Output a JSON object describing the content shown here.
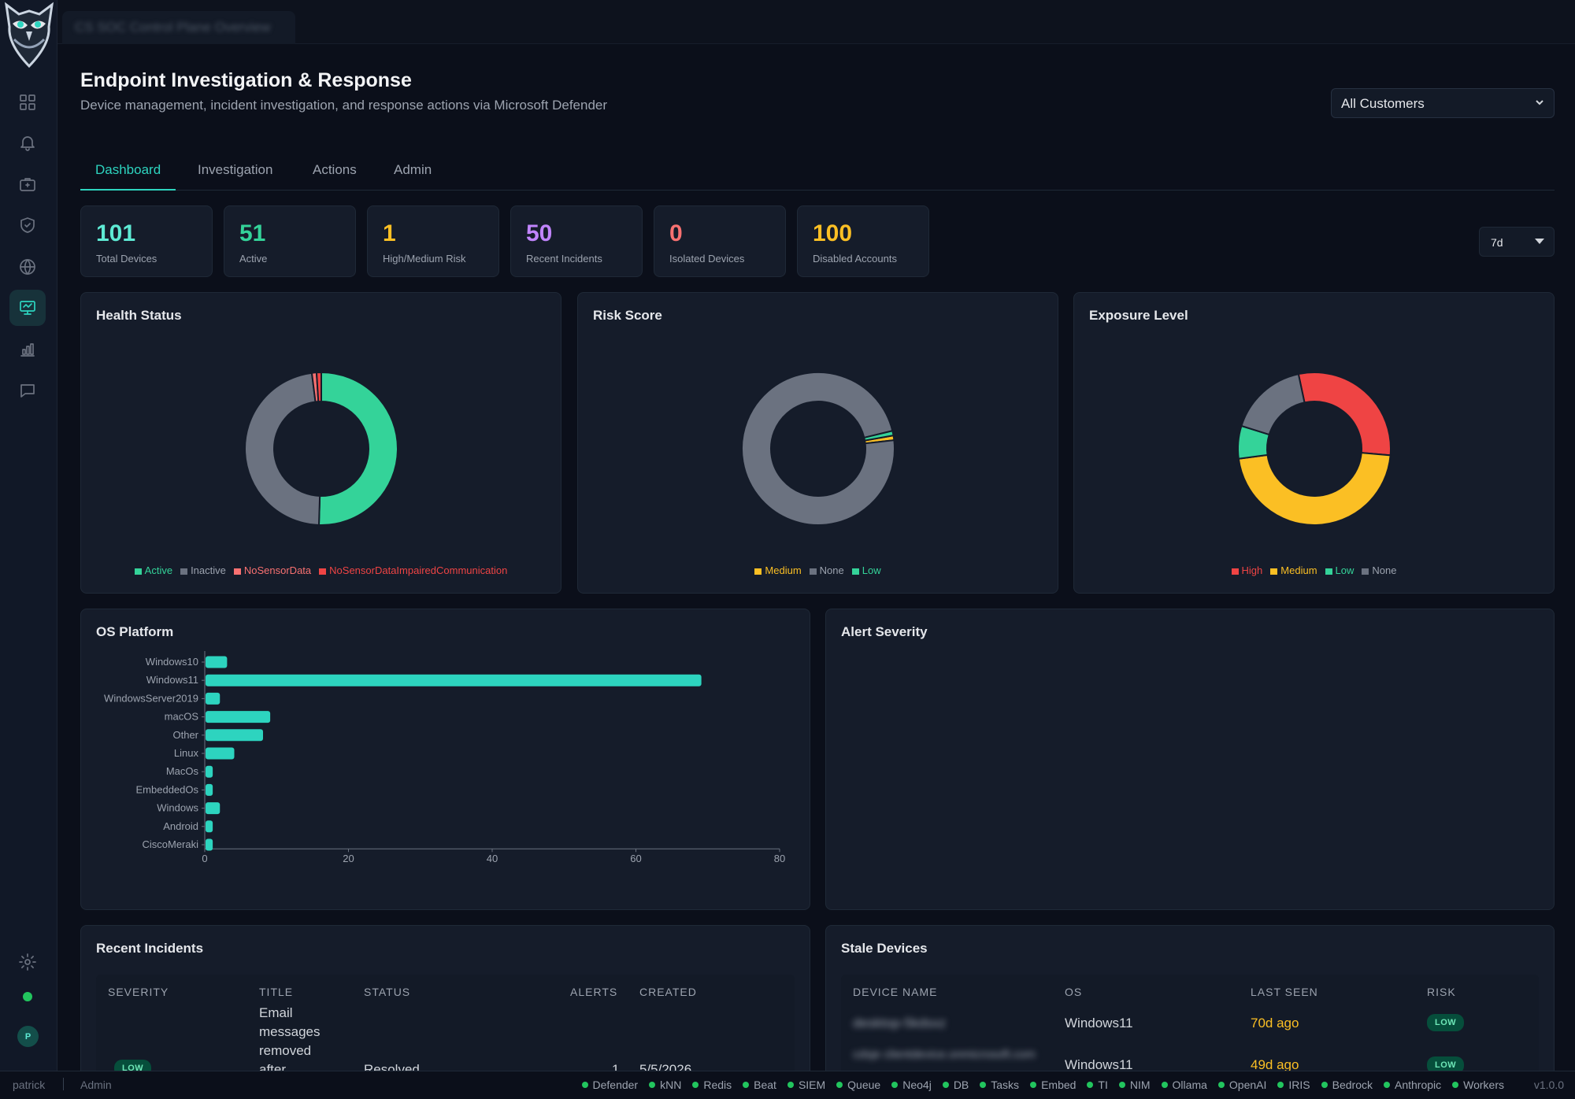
{
  "app": {
    "window_tab_title": "CS SOC Control Plane Overview"
  },
  "sidebar": {
    "items": [
      {
        "name": "dashboard-grid"
      },
      {
        "name": "alerts-bell"
      },
      {
        "name": "cases-briefcase"
      },
      {
        "name": "shield"
      },
      {
        "name": "globe"
      },
      {
        "name": "endpoint-monitor",
        "active": true
      },
      {
        "name": "reports-chart"
      },
      {
        "name": "chat"
      }
    ],
    "avatar_initial": "P"
  },
  "header": {
    "title": "Endpoint Investigation & Response",
    "subtitle": "Device management, incident investigation, and response actions via Microsoft Defender",
    "customer_select": "All Customers"
  },
  "tabs": [
    "Dashboard",
    "Investigation",
    "Actions",
    "Admin"
  ],
  "active_tab": "Dashboard",
  "kpis": [
    {
      "value": "101",
      "label": "Total Devices",
      "color": "#5eead4"
    },
    {
      "value": "51",
      "label": "Active",
      "color": "#34d399"
    },
    {
      "value": "1",
      "label": "High/Medium Risk",
      "color": "#fbbf24"
    },
    {
      "value": "50",
      "label": "Recent Incidents",
      "color": "#c084fc"
    },
    {
      "value": "0",
      "label": "Isolated Devices",
      "color": "#f87171"
    },
    {
      "value": "100",
      "label": "Disabled Accounts",
      "color": "#fbbf24"
    }
  ],
  "time_range": "7d",
  "panels": {
    "health": {
      "title": "Health Status"
    },
    "risk": {
      "title": "Risk Score"
    },
    "exposure": {
      "title": "Exposure Level"
    },
    "os": {
      "title": "OS Platform"
    },
    "alert_severity": {
      "title": "Alert Severity"
    },
    "incidents": {
      "title": "Recent Incidents"
    },
    "stale": {
      "title": "Stale Devices"
    }
  },
  "chart_data": [
    {
      "type": "pie",
      "title": "Health Status",
      "series": [
        {
          "name": "Active",
          "value": 51,
          "color": "#34d399"
        },
        {
          "name": "Inactive",
          "value": 48,
          "color": "#6b7280"
        },
        {
          "name": "NoSensorData",
          "value": 1,
          "color": "#f87171"
        },
        {
          "name": "NoSensorDataImpairedCommunication",
          "value": 1,
          "color": "#ef4444"
        }
      ]
    },
    {
      "type": "pie",
      "title": "Risk Score",
      "series": [
        {
          "name": "Medium",
          "value": 1,
          "color": "#fbbf24"
        },
        {
          "name": "None",
          "value": 99,
          "color": "#6b7280"
        },
        {
          "name": "Low",
          "value": 1,
          "color": "#34d399"
        }
      ]
    },
    {
      "type": "pie",
      "title": "Exposure Level",
      "series": [
        {
          "name": "High",
          "value": 30,
          "color": "#ef4444"
        },
        {
          "name": "Medium",
          "value": 47,
          "color": "#fbbf24"
        },
        {
          "name": "Low",
          "value": 7,
          "color": "#34d399"
        },
        {
          "name": "None",
          "value": 17,
          "color": "#6b7280"
        }
      ]
    },
    {
      "type": "bar",
      "orientation": "horizontal",
      "title": "OS Platform",
      "categories": [
        "Windows10",
        "Windows11",
        "WindowsServer2019",
        "macOS",
        "Other",
        "Linux",
        "MacOs",
        "EmbeddedOs",
        "Windows",
        "Android",
        "CiscoMeraki"
      ],
      "values": [
        3,
        69,
        2,
        9,
        8,
        4,
        1,
        1,
        2,
        1,
        1
      ],
      "xlim": [
        0,
        80
      ],
      "xticks": [
        0,
        20,
        40,
        60,
        80
      ],
      "color": "#2dd4bf",
      "grid": false
    }
  ],
  "incidents": {
    "columns": [
      "SEVERITY",
      "TITLE",
      "STATUS",
      "ALERTS",
      "CREATED"
    ],
    "rows": [
      {
        "severity": "LOW",
        "title_lines": [
          "Email",
          "messages",
          "removed",
          "after"
        ],
        "status": "Resolved",
        "alerts": "1",
        "created": "5/5/2026"
      }
    ]
  },
  "stale": {
    "columns": [
      "DEVICE NAME",
      "OS",
      "LAST SEEN",
      "RISK"
    ],
    "rows": [
      {
        "device": "desktop-5kdsxz",
        "os": "Windows11",
        "last_seen": "70d ago",
        "risk": "LOW"
      },
      {
        "device": "cdsje clientdevice.onmicrosoft.com",
        "os": "Windows11",
        "last_seen": "49d ago",
        "risk": "LOW"
      }
    ]
  },
  "footer": {
    "user": "patrick",
    "role": "Admin",
    "services": [
      "Defender",
      "kNN",
      "Redis",
      "Beat",
      "SIEM",
      "Queue",
      "Neo4j",
      "DB",
      "Tasks",
      "Embed",
      "TI",
      "NIM",
      "Ollama",
      "OpenAI",
      "IRIS",
      "Bedrock",
      "Anthropic",
      "Workers"
    ],
    "version": "v1.0.0"
  }
}
